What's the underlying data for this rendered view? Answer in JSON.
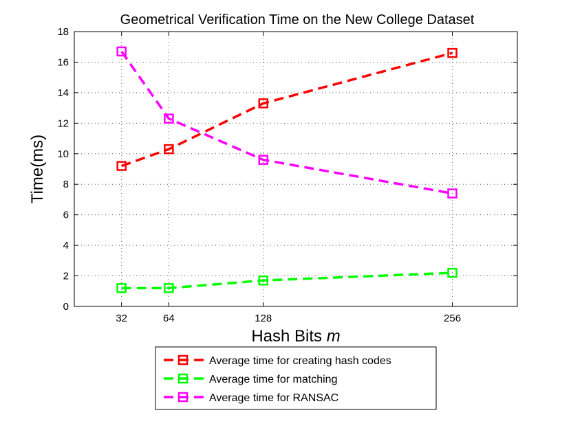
{
  "chart_data": {
    "type": "line",
    "title": "Geometrical Verification Time on the New College Dataset",
    "xlabel": "Hash Bits",
    "xlabel_var": "m",
    "ylabel": "Time(ms)",
    "x": [
      32,
      64,
      128,
      256
    ],
    "xlim": [
      0,
      300
    ],
    "ylim": [
      0,
      18
    ],
    "yticks": [
      0,
      2,
      4,
      6,
      8,
      10,
      12,
      14,
      16,
      18
    ],
    "grid": true,
    "legend_position": "bottom-center-outside",
    "series": [
      {
        "name": "Average time for creating hash codes",
        "color": "#ff0000",
        "values": [
          9.2,
          10.3,
          13.3,
          16.6
        ]
      },
      {
        "name": "Average time for matching",
        "color": "#00ff00",
        "values": [
          1.2,
          1.2,
          1.7,
          2.2
        ]
      },
      {
        "name": "Average time for RANSAC",
        "color": "#ff00ff",
        "values": [
          16.7,
          12.3,
          9.6,
          7.4
        ]
      }
    ]
  }
}
